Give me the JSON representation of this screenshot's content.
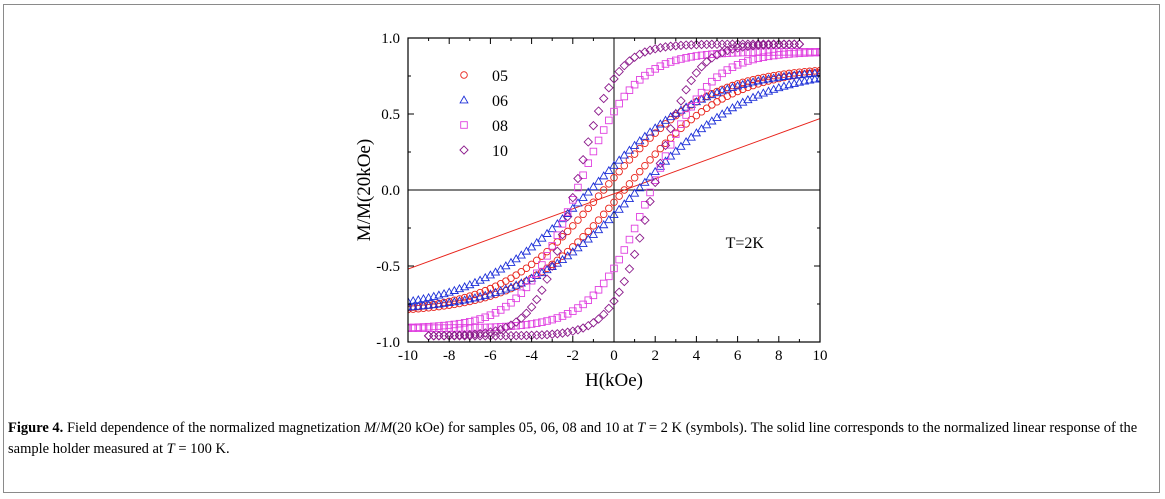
{
  "chart_data": {
    "type": "scatter",
    "xlabel": "H(kOe)",
    "ylabel": "M/M(20kOe)",
    "xlim": [
      -10,
      10
    ],
    "ylim": [
      -1.0,
      1.0
    ],
    "xticks": [
      "-10",
      "-8",
      "-6",
      "-4",
      "-2",
      "0",
      "2",
      "4",
      "6",
      "8",
      "10"
    ],
    "yticks": [
      "-1.0",
      "-0.5",
      "0.0",
      "0.5",
      "1.0"
    ],
    "annotation": "T=2K",
    "legend_position": "top-left",
    "series": [
      {
        "name": "05",
        "marker": "circle",
        "color": "#e8231b",
        "Ms": 0.81,
        "Hc": 0.5,
        "width": 5.0,
        "hmin": -10,
        "hmax": 10
      },
      {
        "name": "06",
        "marker": "triangle",
        "color": "#1c2fd8",
        "Ms": 0.8,
        "Hc": 1.15,
        "width": 5.6,
        "hmin": -10,
        "hmax": 10
      },
      {
        "name": "08",
        "marker": "square",
        "color": "#e040e0",
        "Ms": 0.91,
        "Hc": 1.8,
        "width": 2.8,
        "hmin": -10,
        "hmax": 10
      },
      {
        "name": "10",
        "marker": "diamond",
        "color": "#8b1a8b",
        "Ms": 0.96,
        "Hc": 1.9,
        "width": 1.9,
        "hmin": -9,
        "hmax": 9
      }
    ],
    "reference_line": {
      "description": "sample holder linear response",
      "color": "#e8231b",
      "x": [
        -10,
        10
      ],
      "y": [
        -0.52,
        0.47
      ]
    }
  },
  "caption": {
    "label": "Figure 4.",
    "text_a": " Field dependence of the normalized magnetization ",
    "var_m": "M",
    "text_b": "/",
    "var_m2": "M",
    "text_c": "(20 kOe) for samples 05, 06, 08 and 10 at ",
    "var_t": "T",
    "text_d": " = 2 K (symbols). The solid line corresponds to the normalized linear response of the sample holder measured at ",
    "var_t2": "T",
    "text_e": " = 100 K."
  }
}
